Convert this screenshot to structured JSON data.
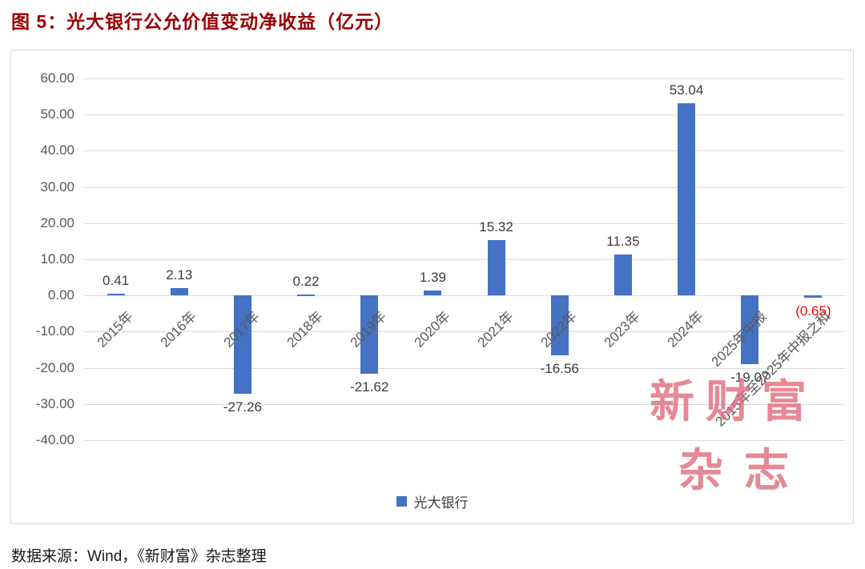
{
  "title": "图 5：光大银行公允价值变动净收益（亿元）",
  "footer": "数据来源：Wind，《新财富》杂志整理",
  "watermark": {
    "line1": "新财富",
    "line2": "杂志"
  },
  "colors": {
    "bar": "#4472C4",
    "title": "#990000",
    "negative_label": "#FF0000",
    "watermark": "rgba(224,107,123,0.8)",
    "gridline": "#D9D9D9"
  },
  "chart_data": {
    "type": "bar",
    "title": "图 5：光大银行公允价值变动净收益（亿元）",
    "series_name": "光大银行",
    "categories": [
      "2015年",
      "2016年",
      "2017年",
      "2018年",
      "2019年",
      "2020年",
      "2021年",
      "2022年",
      "2023年",
      "2024年",
      "2025年中报",
      "2015年至2025年中报之和"
    ],
    "values": [
      0.41,
      2.13,
      -27.26,
      0.22,
      -21.62,
      1.39,
      15.32,
      -16.56,
      11.35,
      53.04,
      -19.07,
      -0.65
    ],
    "value_labels": [
      "0.41",
      "2.13",
      "-27.26",
      "0.22",
      "-21.62",
      "1.39",
      "15.32",
      "-16.56",
      "11.35",
      "53.04",
      "-19.07",
      "(0.65)"
    ],
    "label_colors": [
      "#3b3b3b",
      "#3b3b3b",
      "#3b3b3b",
      "#3b3b3b",
      "#3b3b3b",
      "#3b3b3b",
      "#3b3b3b",
      "#3b3b3b",
      "#3b3b3b",
      "#3b3b3b",
      "#3b3b3b",
      "#FF0000"
    ],
    "ylim": [
      -40,
      60
    ],
    "ytick_step": 10,
    "yticks": [
      "60.00",
      "50.00",
      "40.00",
      "30.00",
      "20.00",
      "10.00",
      "0.00",
      "-10.00",
      "-20.00",
      "-30.00",
      "-40.00"
    ],
    "grid": true,
    "legend_position": "bottom"
  }
}
